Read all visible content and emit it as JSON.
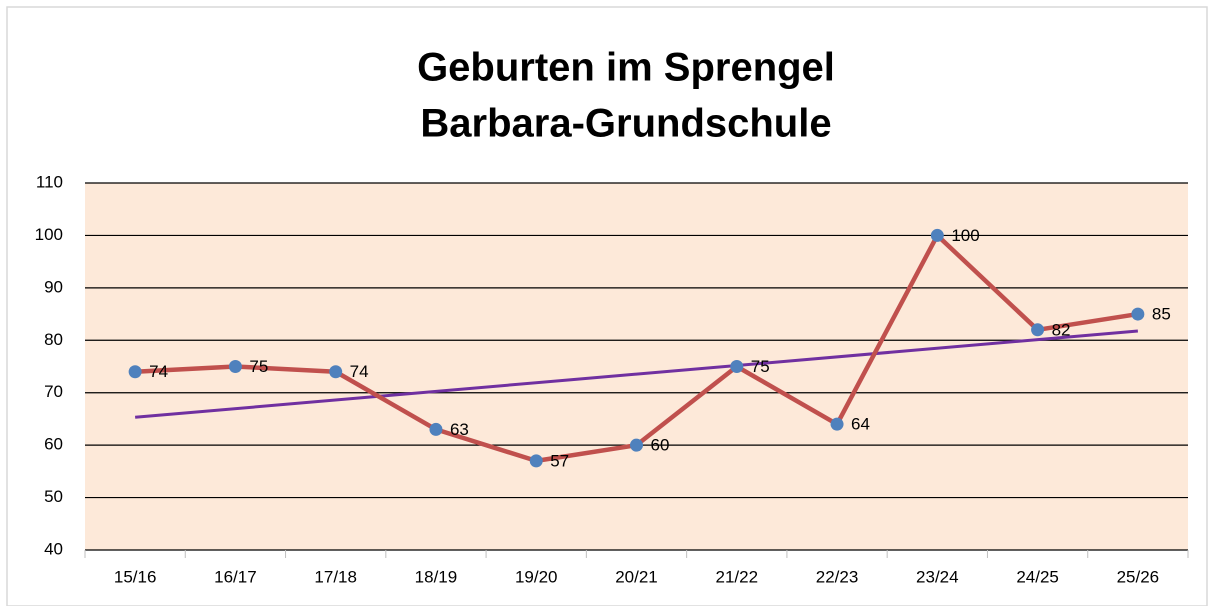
{
  "chart_data": {
    "type": "line",
    "title": [
      "Geburten im Sprengel",
      "Barbara-Grundschule"
    ],
    "categories": [
      "15/16",
      "16/17",
      "17/18",
      "18/19",
      "19/20",
      "20/21",
      "21/22",
      "22/23",
      "23/24",
      "24/25",
      "25/26"
    ],
    "series": [
      {
        "color": "#c0504d",
        "marker_color": "#4f81bd",
        "values": [
          74,
          75,
          74,
          63,
          57,
          60,
          75,
          64,
          100,
          82,
          85
        ]
      }
    ],
    "trendline": {
      "type": "linear",
      "color": "#7030a0"
    },
    "ylim": [
      40,
      110
    ],
    "yticks": [
      40,
      50,
      60,
      70,
      80,
      90,
      100,
      110
    ],
    "grid": true,
    "plot_background": "#fde9d9",
    "data_labels": true
  }
}
